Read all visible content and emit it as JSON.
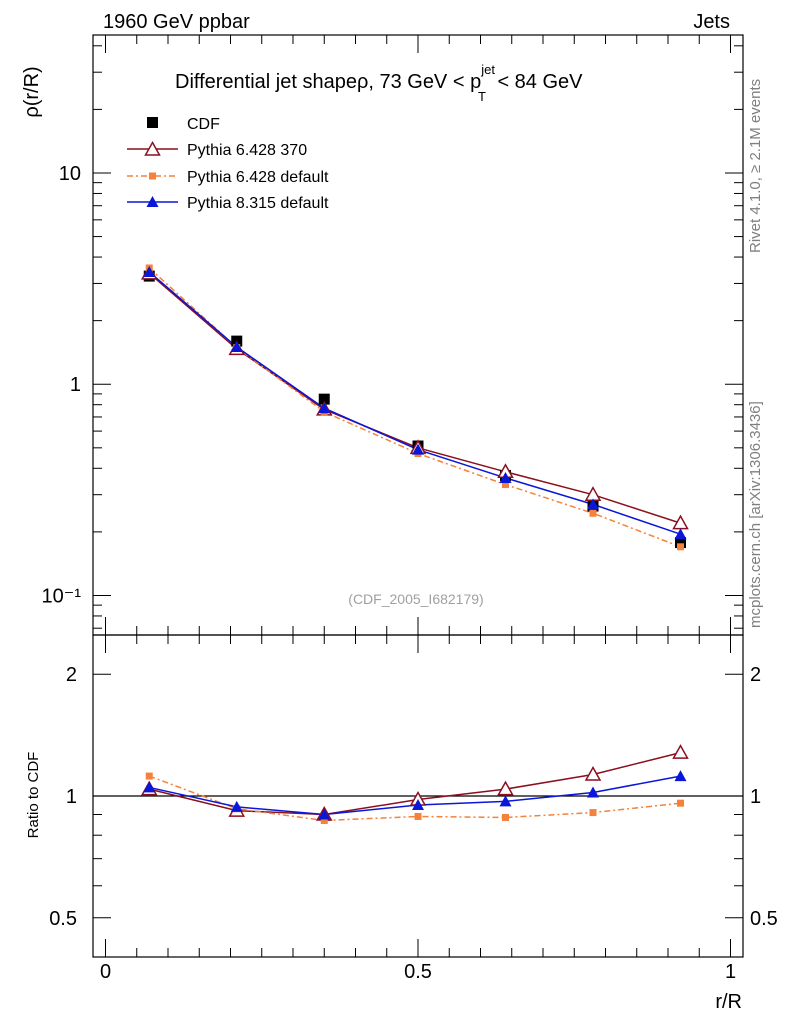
{
  "header": {
    "left_label": "1960 GeV ppbar",
    "right_label": "Jets"
  },
  "side_labels": {
    "rivet": "Rivet 4.1.0, ≥ 2.1M events",
    "mcplots": "mcplots.cern.ch [arXiv:1306.3436]"
  },
  "colors": {
    "cdf": "#000000",
    "pythia6_370": "#8b0f1e",
    "pythia6_default": "#f5813a",
    "pythia8_default": "#0a16d8"
  },
  "chart_data": [
    {
      "type": "line",
      "panel": "main",
      "title_prefix": "Differential jet shapeρ, 73 GeV < p",
      "title_sup": "jet",
      "title_sub": "T",
      "title_suffix": " < 84 GeV",
      "ylabel": "ρ(r/R)",
      "yscale": "log",
      "ylim": [
        0.065,
        45
      ],
      "xlim": [
        -0.02,
        1.02
      ],
      "ytick_labels": [
        "10⁻¹",
        "1",
        "10"
      ],
      "ytick_values": [
        0.1,
        1,
        10
      ],
      "annotation": "(CDF_2005_I682179)",
      "x": [
        0.07,
        0.21,
        0.35,
        0.5,
        0.64,
        0.78,
        0.92
      ],
      "series": [
        {
          "name": "CDF",
          "key": "cdf",
          "marker": "square",
          "values": [
            3.25,
            1.6,
            0.85,
            0.51,
            0.37,
            0.265,
            0.178
          ]
        },
        {
          "name": "Pythia 6.428 370",
          "key": "pythia6_370",
          "marker": "open-triangle",
          "values": [
            3.35,
            1.47,
            0.76,
            0.5,
            0.385,
            0.3,
            0.22
          ]
        },
        {
          "name": "Pythia 6.428 default",
          "key": "pythia6_default",
          "marker": "small-square",
          "dashed": true,
          "values": [
            3.55,
            1.49,
            0.74,
            0.47,
            0.335,
            0.245,
            0.17
          ]
        },
        {
          "name": "Pythia 8.315 default",
          "key": "pythia8_default",
          "marker": "triangle",
          "values": [
            3.4,
            1.5,
            0.77,
            0.49,
            0.36,
            0.27,
            0.195
          ]
        }
      ]
    },
    {
      "type": "line",
      "panel": "ratio",
      "ylabel": "Ratio to CDF",
      "xlabel": "r/R",
      "yscale": "log",
      "ylim": [
        0.4,
        2.5
      ],
      "xlim": [
        -0.02,
        1.02
      ],
      "ytick_labels": [
        "0.5",
        "1",
        "2"
      ],
      "ytick_values": [
        0.5,
        1,
        2
      ],
      "ytick_labels_right": [
        "0.5",
        "1",
        "2"
      ],
      "xtick_labels": [
        "0",
        "0.5",
        "1"
      ],
      "xtick_values": [
        0,
        0.5,
        1
      ],
      "reference_line": 1,
      "x": [
        0.07,
        0.21,
        0.35,
        0.5,
        0.64,
        0.78,
        0.92
      ],
      "series": [
        {
          "name": "Pythia 6.428 370",
          "key": "pythia6_370",
          "marker": "open-triangle",
          "values": [
            1.04,
            0.92,
            0.9,
            0.98,
            1.04,
            1.13,
            1.28
          ]
        },
        {
          "name": "Pythia 6.428 default",
          "key": "pythia6_default",
          "marker": "small-square",
          "dashed": true,
          "values": [
            1.12,
            0.93,
            0.87,
            0.89,
            0.885,
            0.91,
            0.96
          ]
        },
        {
          "name": "Pythia 8.315 default",
          "key": "pythia8_default",
          "marker": "triangle",
          "values": [
            1.05,
            0.94,
            0.9,
            0.95,
            0.97,
            1.02,
            1.12
          ]
        }
      ]
    }
  ]
}
